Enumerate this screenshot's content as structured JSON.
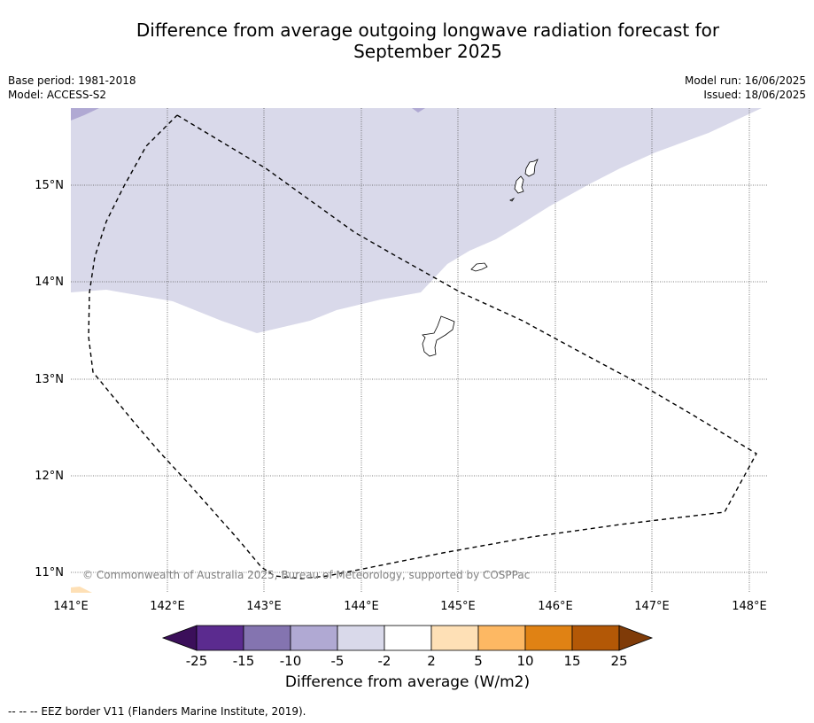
{
  "title_line1": "Difference from average outgoing longwave radiation forecast for",
  "title_line2": "September 2025",
  "meta": {
    "base_period": "Base period: 1981-2018",
    "model": "Model: ACCESS-S2",
    "model_run": "Model run: 16/06/2025",
    "issued": "Issued: 18/06/2025"
  },
  "map": {
    "lat_labels": [
      "15°N",
      "14°N",
      "13°N",
      "12°N",
      "11°N"
    ],
    "lon_labels": [
      "141°E",
      "142°E",
      "143°E",
      "144°E",
      "145°E",
      "146°E",
      "147°E",
      "148°E"
    ],
    "copyright": "© Commonwealth of Australia 2025, Bureau of Meteorology, supported by COSPPac"
  },
  "colorbar": {
    "title": "Difference from average (W/m2)",
    "ticks": [
      "-25",
      "-15",
      "-10",
      "-5",
      "-2",
      "2",
      "5",
      "10",
      "15",
      "25"
    ],
    "colors": [
      "#3b0f5a",
      "#5b2b8f",
      "#8474b0",
      "#b0a9d3",
      "#d9d9ea",
      "#ffffff",
      "#fee0b6",
      "#fdb863",
      "#e08214",
      "#b35806",
      "#7f3b08"
    ]
  },
  "footnote": "--  --  -- EEZ border V11 (Flanders Marine Institute, 2019)."
}
